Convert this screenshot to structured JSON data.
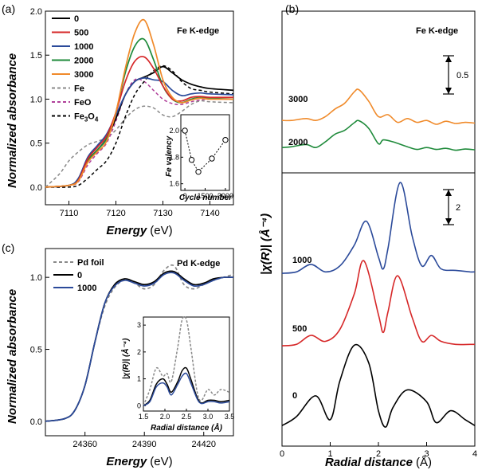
{
  "colors": {
    "s0": "#000000",
    "s500": "#d62728",
    "s1000": "#2b4a9a",
    "s2000": "#1e8a3a",
    "s3000": "#f08a2a",
    "fe": "#888888",
    "feo": "#b0409a",
    "fe3o4": "#000000",
    "pdfoil": "#888888"
  },
  "panel_a": {
    "letter": "(a)",
    "edge_label": "Fe K-edge",
    "ylabel": "Normalized absorbance",
    "xlabel_main": "Energy",
    "xlabel_unit": "(eV)",
    "legend": [
      "0",
      "500",
      "1000",
      "2000",
      "3000",
      "Fe",
      "FeO",
      "Fe3O4"
    ],
    "inset": {
      "ylabel": "Fe valency",
      "xlabel": "Cycle number",
      "xticks": [
        "0",
        "1500",
        "3000"
      ],
      "yticks": [
        "1.6",
        "1.8",
        "2.0"
      ]
    }
  },
  "panel_b": {
    "letter": "(b)",
    "edge_label": "Fe K-edge",
    "ylabel": "|χ(R)| (Å⁻⁴)",
    "xlabel_main": "Radial distance",
    "xlabel_unit": "(Å)",
    "scale_top": "0.5",
    "scale_bottom": "2",
    "series_labels": [
      "3000",
      "2000",
      "1000",
      "500",
      "0"
    ]
  },
  "panel_c": {
    "letter": "(c)",
    "edge_label": "Pd K-edge",
    "ylabel": "Normalized absorbance",
    "xlabel_main": "Energy",
    "xlabel_unit": "(eV)",
    "legend": [
      "Pd foil",
      "0",
      "1000"
    ],
    "inset": {
      "ylabel": "|χ(R)| (Å⁻⁴)",
      "xlabel": "Radial distance (Å)",
      "xticks": [
        "1.5",
        "2.0",
        "2.5",
        "3.0",
        "3.5"
      ],
      "yticks": [
        "0",
        "1",
        "2",
        "3"
      ]
    }
  },
  "chart_data": [
    {
      "type": "line",
      "panel": "a",
      "xlabel": "Energy (eV)",
      "ylabel": "Normalized absorbance",
      "xlim": [
        7105,
        7145
      ],
      "ylim": [
        -0.2,
        2.0
      ],
      "xticks": [
        7110,
        7120,
        7130,
        7140
      ],
      "yticks": [
        0.0,
        0.5,
        1.0,
        1.5,
        2.0
      ],
      "series": [
        {
          "name": "0",
          "x": [
            7105,
            7110,
            7112,
            7114,
            7116,
            7118,
            7120,
            7122,
            7124,
            7126,
            7128,
            7130,
            7132,
            7134,
            7136,
            7138,
            7140,
            7145
          ],
          "y": [
            0,
            0.02,
            0.08,
            0.3,
            0.42,
            0.55,
            0.78,
            1.05,
            1.2,
            1.25,
            1.3,
            1.37,
            1.3,
            1.22,
            1.17,
            1.14,
            1.12,
            1.1
          ]
        },
        {
          "name": "500",
          "x": [
            7105,
            7110,
            7112,
            7114,
            7116,
            7118,
            7120,
            7122,
            7124,
            7126,
            7128,
            7130,
            7132,
            7134,
            7136,
            7138,
            7140,
            7145
          ],
          "y": [
            0,
            0.02,
            0.08,
            0.32,
            0.45,
            0.58,
            0.85,
            1.2,
            1.43,
            1.48,
            1.35,
            1.15,
            1.0,
            0.98,
            1.02,
            1.03,
            1.02,
            1.02
          ]
        },
        {
          "name": "1000",
          "x": [
            7105,
            7110,
            7112,
            7114,
            7116,
            7118,
            7120,
            7122,
            7124,
            7126,
            7128,
            7130,
            7132,
            7134,
            7136,
            7138,
            7140,
            7145
          ],
          "y": [
            0,
            0.02,
            0.1,
            0.34,
            0.47,
            0.6,
            0.82,
            1.05,
            1.2,
            1.24,
            1.22,
            1.2,
            1.1,
            1.04,
            1.06,
            1.07,
            1.06,
            1.05
          ]
        },
        {
          "name": "2000",
          "x": [
            7105,
            7110,
            7112,
            7114,
            7116,
            7118,
            7120,
            7122,
            7124,
            7126,
            7128,
            7130,
            7132,
            7134,
            7136,
            7138,
            7140,
            7145
          ],
          "y": [
            0,
            0.02,
            0.08,
            0.3,
            0.42,
            0.55,
            0.85,
            1.3,
            1.6,
            1.68,
            1.45,
            1.15,
            1.0,
            0.96,
            1.0,
            1.02,
            1.01,
            1.0
          ]
        },
        {
          "name": "3000",
          "x": [
            7105,
            7110,
            7112,
            7114,
            7116,
            7118,
            7120,
            7122,
            7124,
            7126,
            7128,
            7130,
            7132,
            7134,
            7136,
            7138,
            7140,
            7145
          ],
          "y": [
            0,
            0.02,
            0.07,
            0.28,
            0.4,
            0.52,
            0.85,
            1.35,
            1.75,
            1.9,
            1.62,
            1.22,
            1.02,
            0.96,
            0.99,
            1.01,
            1.0,
            1.0
          ]
        },
        {
          "name": "Fe",
          "x": [
            7105,
            7108,
            7110,
            7112,
            7114,
            7116,
            7118,
            7120,
            7122,
            7124,
            7126,
            7128,
            7130,
            7132,
            7134,
            7136,
            7138,
            7140,
            7145
          ],
          "y": [
            0,
            0.15,
            0.3,
            0.4,
            0.48,
            0.52,
            0.56,
            0.65,
            0.78,
            0.88,
            0.92,
            0.9,
            0.82,
            0.8,
            0.86,
            0.94,
            0.98,
            0.97,
            0.96
          ]
        },
        {
          "name": "FeO",
          "x": [
            7105,
            7110,
            7112,
            7114,
            7116,
            7118,
            7120,
            7122,
            7124,
            7126,
            7128,
            7130,
            7132,
            7134,
            7136,
            7138,
            7140,
            7145
          ],
          "y": [
            0,
            0.02,
            0.06,
            0.25,
            0.38,
            0.5,
            0.75,
            1.05,
            1.22,
            1.2,
            1.1,
            1.0,
            0.95,
            0.94,
            0.97,
            0.99,
            1.0,
            1.0
          ]
        },
        {
          "name": "Fe3O4",
          "x": [
            7105,
            7110,
            7112,
            7114,
            7116,
            7118,
            7120,
            7122,
            7124,
            7126,
            7128,
            7130,
            7132,
            7134,
            7136,
            7138,
            7140,
            7145
          ],
          "y": [
            0,
            0.0,
            0.02,
            0.1,
            0.2,
            0.3,
            0.5,
            0.8,
            1.05,
            1.2,
            1.32,
            1.38,
            1.32,
            1.2,
            1.12,
            1.1,
            1.08,
            1.06
          ]
        }
      ]
    },
    {
      "type": "scatter",
      "panel": "a-inset",
      "xlabel": "Cycle number",
      "ylabel": "Fe valency",
      "xlim": [
        -300,
        3300
      ],
      "ylim": [
        1.55,
        2.12
      ],
      "x": [
        0,
        500,
        1000,
        2000,
        3000
      ],
      "y": [
        2.0,
        1.78,
        1.69,
        1.79,
        1.93
      ]
    },
    {
      "type": "line",
      "panel": "b-top",
      "xlabel": "Radial distance (Å)",
      "ylabel": "|χ(R)| (Å⁻⁴)",
      "xlim": [
        0,
        4
      ],
      "scale_bar": 0.5,
      "series": [
        {
          "name": "3000",
          "x": [
            0,
            0.2,
            0.5,
            0.7,
            0.9,
            1.1,
            1.3,
            1.5,
            1.6,
            1.8,
            2.0,
            2.2,
            2.4,
            2.6,
            2.8,
            3.0,
            3.2,
            3.4,
            3.6,
            3.8,
            4.0
          ],
          "y": [
            0.1,
            0.1,
            0.15,
            0.1,
            0.2,
            0.4,
            0.55,
            0.85,
            0.9,
            0.6,
            0.2,
            0.25,
            0.05,
            0.15,
            0.05,
            0.1,
            0.0,
            0.08,
            0.02,
            0.05,
            0.03
          ]
        },
        {
          "name": "2000",
          "x": [
            0,
            0.2,
            0.5,
            0.7,
            0.9,
            1.1,
            1.3,
            1.5,
            1.6,
            1.8,
            2.0,
            2.1,
            2.3,
            2.6,
            2.8,
            3.0,
            3.2,
            3.4,
            3.6,
            3.8,
            4.0
          ],
          "y": [
            0.1,
            0.12,
            0.18,
            0.1,
            0.25,
            0.45,
            0.55,
            0.75,
            0.8,
            0.6,
            0.2,
            0.3,
            0.25,
            0.12,
            0.05,
            0.1,
            0.05,
            0.08,
            0.03,
            0.06,
            0.04
          ]
        }
      ]
    },
    {
      "type": "line",
      "panel": "b-bottom",
      "xlabel": "Radial distance (Å)",
      "ylabel": "|χ(R)| (Å⁻⁴)",
      "xlim": [
        0,
        4
      ],
      "xticks": [
        0,
        1,
        2,
        3,
        4
      ],
      "scale_bar": 2,
      "series": [
        {
          "name": "1000",
          "x": [
            0,
            0.3,
            0.6,
            0.9,
            1.2,
            1.5,
            1.75,
            2.0,
            2.1,
            2.2,
            2.45,
            2.7,
            2.9,
            3.1,
            3.3,
            3.6,
            3.9,
            4.0
          ],
          "y": [
            0.05,
            0.1,
            0.35,
            0.1,
            0.3,
            1.0,
            1.8,
            0.6,
            0.2,
            0.9,
            3.1,
            1.3,
            0.3,
            0.65,
            0.2,
            0.15,
            0.1,
            0.1
          ]
        },
        {
          "name": "500",
          "x": [
            0,
            0.3,
            0.6,
            0.9,
            1.2,
            1.5,
            1.7,
            2.0,
            2.1,
            2.2,
            2.4,
            2.7,
            2.9,
            3.1,
            3.3,
            3.6,
            3.9,
            4.0
          ],
          "y": [
            0.05,
            0.1,
            0.4,
            0.2,
            0.6,
            1.8,
            2.9,
            1.1,
            0.5,
            1.2,
            2.4,
            1.0,
            0.2,
            0.4,
            0.2,
            0.1,
            0.1,
            0.1
          ]
        },
        {
          "name": "0",
          "x": [
            0,
            0.3,
            0.7,
            1.0,
            1.2,
            1.5,
            1.8,
            2.0,
            2.15,
            2.3,
            2.6,
            3.0,
            3.2,
            3.5,
            3.8,
            4.0
          ],
          "y": [
            0.1,
            0.4,
            1.1,
            0.3,
            1.6,
            2.8,
            2.2,
            0.6,
            0.05,
            0.7,
            1.3,
            0.9,
            0.2,
            0.6,
            0.3,
            0.1
          ]
        }
      ]
    },
    {
      "type": "line",
      "panel": "c",
      "xlabel": "Energy (eV)",
      "ylabel": "Normalized absorbance",
      "xlim": [
        24340,
        24435
      ],
      "ylim": [
        -0.1,
        1.2
      ],
      "xticks": [
        24360,
        24390,
        24420
      ],
      "yticks": [
        0.0,
        0.5,
        1.0
      ],
      "series": [
        {
          "name": "Pd foil",
          "x": [
            24340,
            24350,
            24355,
            24360,
            24365,
            24370,
            24375,
            24380,
            24385,
            24390,
            24395,
            24400,
            24405,
            24410,
            24415,
            24420,
            24425,
            24430,
            24435
          ],
          "y": [
            0,
            0.02,
            0.08,
            0.25,
            0.55,
            0.8,
            0.93,
            0.98,
            0.96,
            0.92,
            0.95,
            1.05,
            1.08,
            0.95,
            0.92,
            0.95,
            0.98,
            1.0,
            1.02
          ]
        },
        {
          "name": "0",
          "x": [
            24340,
            24350,
            24355,
            24360,
            24365,
            24370,
            24375,
            24380,
            24385,
            24390,
            24395,
            24400,
            24405,
            24410,
            24415,
            24420,
            24425,
            24430,
            24435
          ],
          "y": [
            0,
            0.02,
            0.08,
            0.25,
            0.55,
            0.82,
            0.95,
            0.99,
            0.97,
            0.95,
            0.97,
            1.03,
            1.04,
            0.99,
            0.95,
            0.96,
            0.99,
            1.0,
            1.0
          ]
        },
        {
          "name": "1000",
          "x": [
            24340,
            24350,
            24355,
            24360,
            24365,
            24370,
            24375,
            24380,
            24385,
            24390,
            24395,
            24400,
            24405,
            24410,
            24415,
            24420,
            24425,
            24430,
            24435
          ],
          "y": [
            0,
            0.02,
            0.08,
            0.25,
            0.55,
            0.82,
            0.94,
            0.98,
            0.96,
            0.94,
            0.96,
            1.02,
            1.03,
            0.98,
            0.94,
            0.95,
            0.98,
            1.0,
            1.0
          ]
        }
      ]
    },
    {
      "type": "line",
      "panel": "c-inset",
      "xlabel": "Radial distance (Å)",
      "ylabel": "|χ(R)| (Å⁻⁴)",
      "xlim": [
        1.5,
        3.5
      ],
      "ylim": [
        -0.2,
        3.3
      ],
      "series": [
        {
          "name": "Pd foil",
          "x": [
            1.5,
            1.65,
            1.8,
            1.95,
            2.05,
            2.15,
            2.3,
            2.4,
            2.5,
            2.6,
            2.75,
            2.85,
            3.0,
            3.15,
            3.3,
            3.5
          ],
          "y": [
            0.0,
            0.6,
            1.4,
            1.1,
            1.2,
            0.9,
            2.2,
            3.2,
            3.2,
            2.2,
            0.5,
            0.2,
            0.6,
            0.4,
            0.6,
            0.5
          ]
        },
        {
          "name": "0",
          "x": [
            1.5,
            1.65,
            1.8,
            1.95,
            2.05,
            2.15,
            2.3,
            2.4,
            2.5,
            2.6,
            2.75,
            2.85,
            3.0,
            3.15,
            3.3,
            3.5
          ],
          "y": [
            0.0,
            0.2,
            0.8,
            1.0,
            0.8,
            0.5,
            0.9,
            1.3,
            1.4,
            1.0,
            0.3,
            0.1,
            0.2,
            0.2,
            0.15,
            0.2
          ]
        },
        {
          "name": "1000",
          "x": [
            1.5,
            1.65,
            1.8,
            1.95,
            2.05,
            2.15,
            2.3,
            2.4,
            2.5,
            2.6,
            2.75,
            2.85,
            3.0,
            3.15,
            3.3,
            3.5
          ],
          "y": [
            0.0,
            0.15,
            0.7,
            0.85,
            0.7,
            0.4,
            0.8,
            1.1,
            1.2,
            0.85,
            0.25,
            0.08,
            0.15,
            0.15,
            0.1,
            0.15
          ]
        }
      ]
    }
  ]
}
